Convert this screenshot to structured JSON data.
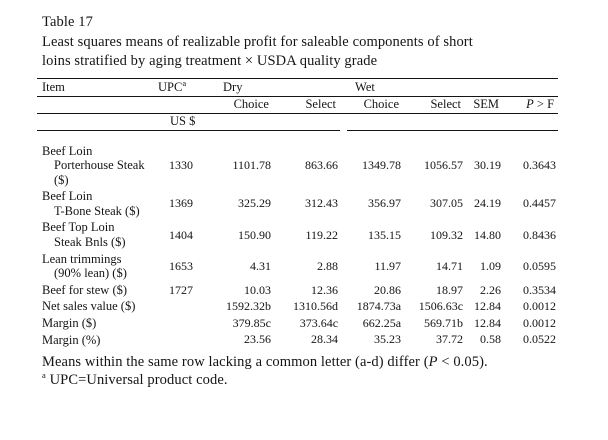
{
  "page": {
    "title": "Table 17",
    "caption_lines": [
      "Least squares means of realizable profit for saleable components of short",
      "loins stratified by aging treatment × USDA quality grade"
    ]
  },
  "table": {
    "headers": {
      "item": "Item",
      "upc": "UPC",
      "upc_superscript": "a",
      "dry_group": "Dry",
      "wet_group": "Wet",
      "dry_choice": "Choice",
      "dry_select": "Select",
      "wet_choice": "Choice",
      "wet_select": "Select",
      "sem": "SEM",
      "p_italic": "P",
      "p_suffix": " > F",
      "units": "US $"
    },
    "rows": [
      {
        "item_lines": [
          "Beef Loin",
          "Porterhouse Steak",
          "($)"
        ],
        "upc": "1330",
        "dry_choice": "1101.78",
        "dry_select": "863.66",
        "wet_choice": "1349.78",
        "wet_select": "1056.57",
        "sem": "30.19",
        "p": "0.3643"
      },
      {
        "item_lines": [
          "Beef Loin",
          "T-Bone Steak ($)"
        ],
        "upc": "1369",
        "dry_choice": "325.29",
        "dry_select": "312.43",
        "wet_choice": "356.97",
        "wet_select": "307.05",
        "sem": "24.19",
        "p": "0.4457"
      },
      {
        "item_lines": [
          "Beef Top Loin",
          "Steak Bnls ($)"
        ],
        "upc": "1404",
        "dry_choice": "150.90",
        "dry_select": "119.22",
        "wet_choice": "135.15",
        "wet_select": "109.32",
        "sem": "14.80",
        "p": "0.8436"
      },
      {
        "item_lines": [
          "Lean trimmings",
          "(90% lean) ($)"
        ],
        "upc": "1653",
        "dry_choice": "4.31",
        "dry_select": "2.88",
        "wet_choice": "11.97",
        "wet_select": "14.71",
        "sem": "1.09",
        "p": "0.0595"
      },
      {
        "item_lines": [
          "Beef for stew ($)"
        ],
        "upc": "1727",
        "dry_choice": "10.03",
        "dry_select": "12.36",
        "wet_choice": "20.86",
        "wet_select": "18.97",
        "sem": "2.26",
        "p": "0.3534"
      },
      {
        "item_lines": [
          "Net sales value ($)"
        ],
        "upc": "",
        "dry_choice": "1592.32b",
        "dry_select": "1310.56d",
        "wet_choice": "1874.73a",
        "wet_select": "1506.63c",
        "sem": "12.84",
        "p": "0.0012"
      },
      {
        "item_lines": [
          "Margin ($)"
        ],
        "upc": "",
        "dry_choice": "379.85c",
        "dry_select": "373.64c",
        "wet_choice": "662.25a",
        "wet_select": "569.71b",
        "sem": "12.84",
        "p": "0.0012"
      },
      {
        "item_lines": [
          "Margin (%)"
        ],
        "upc": "",
        "dry_choice": "23.56",
        "dry_select": "28.34",
        "wet_choice": "35.23",
        "wet_select": "37.72",
        "sem": "0.58",
        "p": "0.0522"
      }
    ]
  },
  "footnotes": {
    "means_pre": "Means within the same row lacking a common letter (a-d) differ (",
    "means_p": "P",
    "means_post": " < 0.05).",
    "upc_superscript": "a",
    "upc_text": " UPC=Universal product code."
  }
}
